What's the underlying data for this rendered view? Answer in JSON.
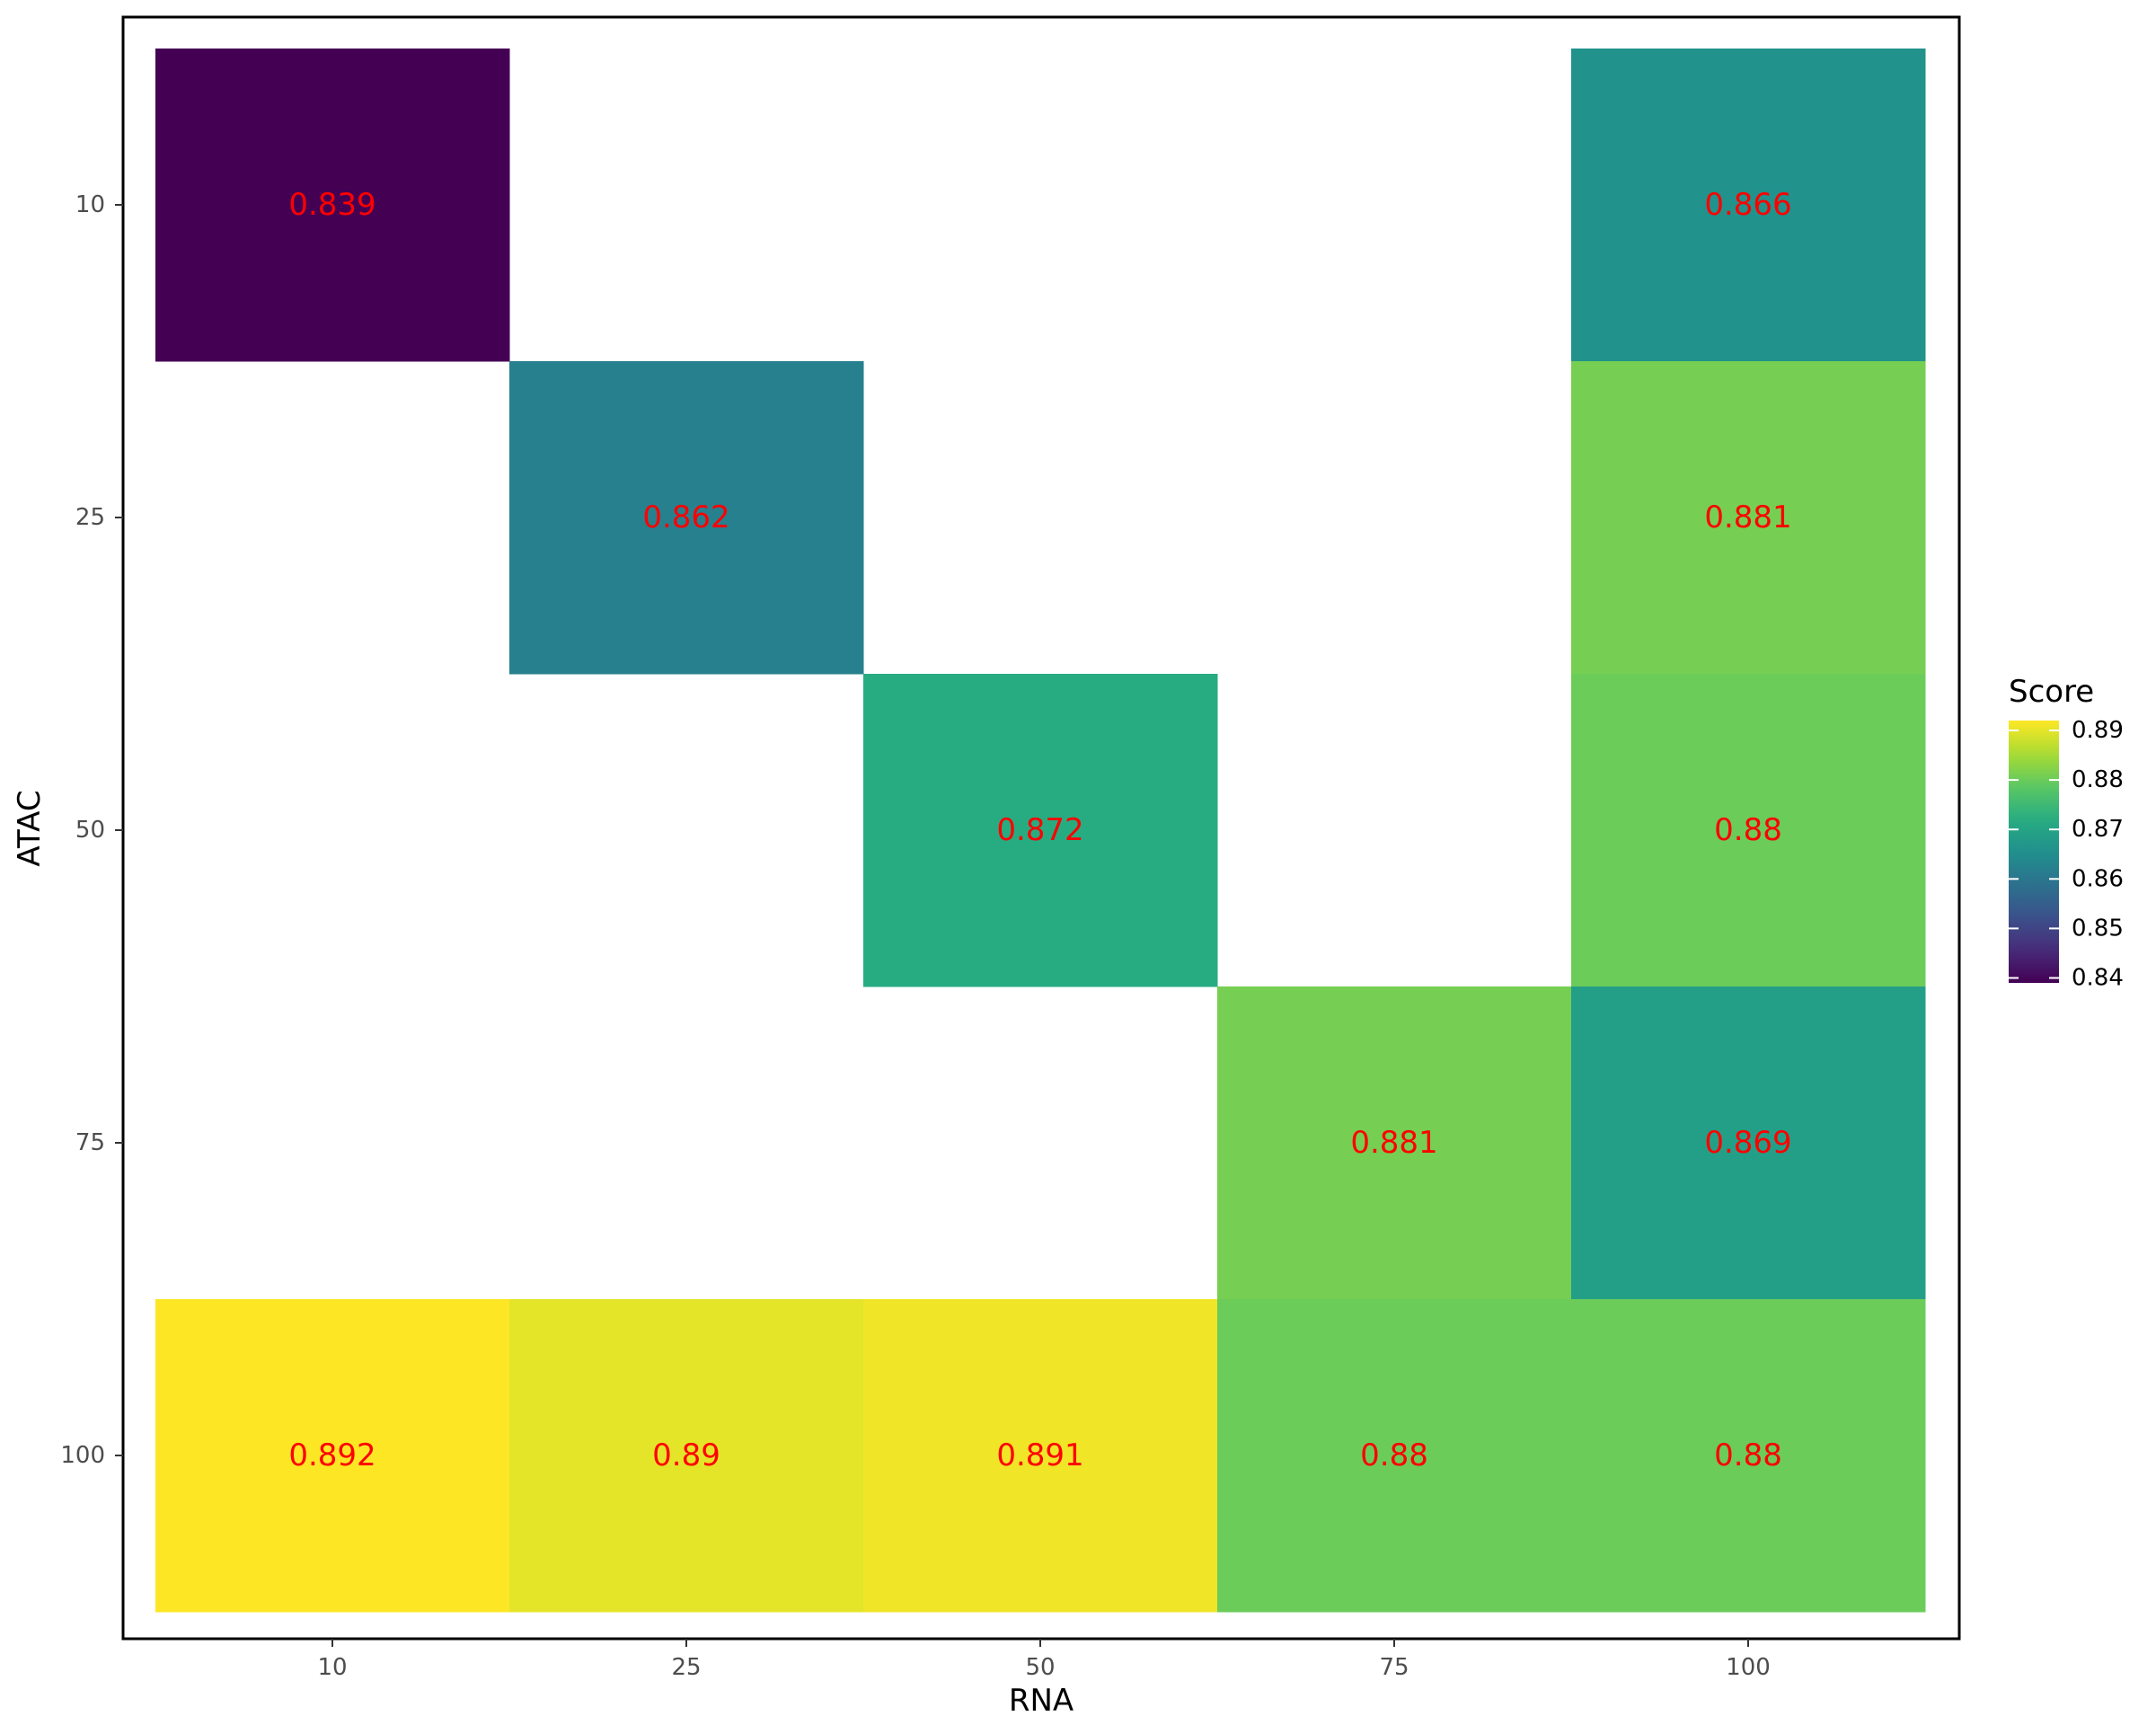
{
  "chart_data": {
    "type": "heatmap",
    "xlabel": "RNA",
    "ylabel": "ATAC",
    "x_categories": [
      "10",
      "25",
      "50",
      "75",
      "100"
    ],
    "y_categories": [
      "10",
      "25",
      "50",
      "75",
      "100"
    ],
    "cells": [
      {
        "x": "10",
        "y": "10",
        "value": 0.839,
        "label": "0.839"
      },
      {
        "x": "100",
        "y": "10",
        "value": 0.866,
        "label": "0.866"
      },
      {
        "x": "25",
        "y": "25",
        "value": 0.862,
        "label": "0.862"
      },
      {
        "x": "100",
        "y": "25",
        "value": 0.881,
        "label": "0.881"
      },
      {
        "x": "50",
        "y": "50",
        "value": 0.872,
        "label": "0.872"
      },
      {
        "x": "100",
        "y": "50",
        "value": 0.88,
        "label": "0.88"
      },
      {
        "x": "75",
        "y": "75",
        "value": 0.881,
        "label": "0.881"
      },
      {
        "x": "100",
        "y": "75",
        "value": 0.869,
        "label": "0.869"
      },
      {
        "x": "10",
        "y": "100",
        "value": 0.892,
        "label": "0.892"
      },
      {
        "x": "25",
        "y": "100",
        "value": 0.89,
        "label": "0.89"
      },
      {
        "x": "50",
        "y": "100",
        "value": 0.891,
        "label": "0.891"
      },
      {
        "x": "75",
        "y": "100",
        "value": 0.88,
        "label": "0.88"
      },
      {
        "x": "100",
        "y": "100",
        "value": 0.88,
        "label": "0.88"
      }
    ],
    "label_color": "#ff0000",
    "colormap": "viridis",
    "value_range": [
      0.839,
      0.892
    ],
    "legend": {
      "title": "Score",
      "ticks": [
        0.84,
        0.85,
        0.86,
        0.87,
        0.88,
        0.89
      ],
      "tick_labels": [
        "0.84",
        "0.85",
        "0.86",
        "0.87",
        "0.88",
        "0.89"
      ],
      "position": "right"
    },
    "grid": false,
    "panel_border": true
  }
}
